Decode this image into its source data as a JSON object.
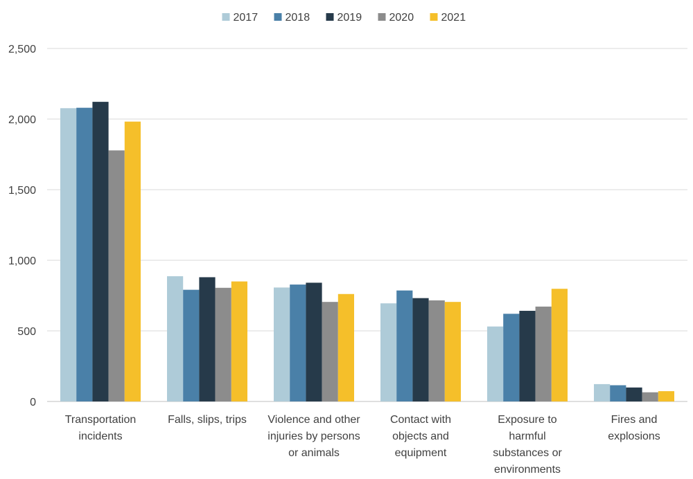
{
  "chart_data": {
    "type": "bar",
    "title": "",
    "xlabel": "",
    "ylabel": "",
    "ylim": [
      0,
      2500
    ],
    "yticks": [
      0,
      500,
      1000,
      1500,
      2000,
      2500
    ],
    "ytick_labels": [
      "0",
      "500",
      "1,000",
      "1,500",
      "2,000",
      "2,500"
    ],
    "grid": true,
    "legend_position": "top-center",
    "categories": [
      [
        "Transportation",
        "incidents"
      ],
      [
        "Falls, slips, trips"
      ],
      [
        "Violence and other",
        "injuries by persons",
        "or animals"
      ],
      [
        "Contact with",
        "objects and",
        "equipment"
      ],
      [
        "Exposure to",
        "harmful",
        "substances or",
        "environments"
      ],
      [
        "Fires and",
        "explosions"
      ]
    ],
    "series": [
      {
        "name": "2017",
        "color": "#aecbd8",
        "values": [
          2077,
          887,
          807,
          695,
          531,
          123
        ]
      },
      {
        "name": "2018",
        "color": "#4a80a8",
        "values": [
          2080,
          791,
          828,
          786,
          621,
          115
        ]
      },
      {
        "name": "2019",
        "color": "#263a4a",
        "values": [
          2122,
          880,
          841,
          732,
          642,
          99
        ]
      },
      {
        "name": "2020",
        "color": "#8c8c8c",
        "values": [
          1778,
          805,
          705,
          716,
          672,
          65
        ]
      },
      {
        "name": "2021",
        "color": "#f5bf2a",
        "values": [
          1982,
          850,
          761,
          705,
          798,
          73
        ]
      }
    ]
  }
}
